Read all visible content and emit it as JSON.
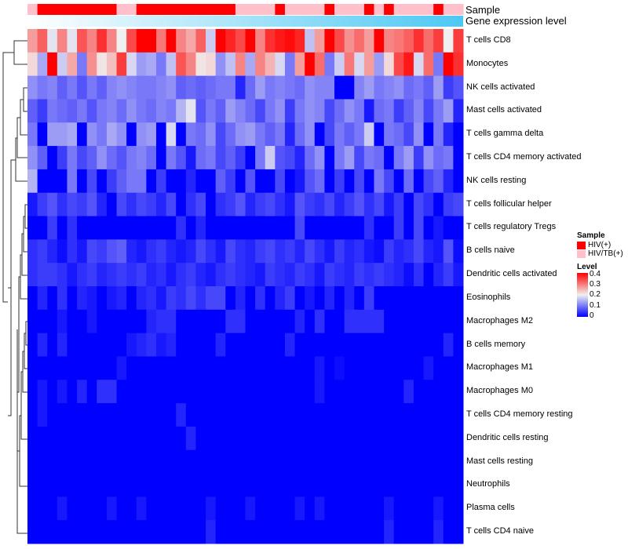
{
  "chart_data": {
    "type": "heatmap",
    "annotation_labels": [
      "Sample",
      "Gene expression level"
    ],
    "sample_legend": {
      "title": "Sample",
      "entries": [
        {
          "label": "HIV(+)",
          "color": "#FF0000"
        },
        {
          "label": "HIV/TB(+)",
          "color": "#FFC0CB"
        }
      ]
    },
    "level_legend": {
      "title": "Level",
      "ticks": [
        "0.4",
        "0.3",
        "0.2",
        "0.1",
        "0"
      ],
      "range": [
        0,
        0.4
      ],
      "colors": [
        "#0000FF",
        "#F0F0F0",
        "#FF0000"
      ]
    },
    "gene_expression_colors": [
      "#FFFFFF",
      "#4CC8F4"
    ],
    "samples": [
      "HIV/TB(+)",
      "HIV(+)",
      "HIV(+)",
      "HIV(+)",
      "HIV(+)",
      "HIV(+)",
      "HIV(+)",
      "HIV(+)",
      "HIV(+)",
      "HIV/TB(+)",
      "HIV/TB(+)",
      "HIV(+)",
      "HIV(+)",
      "HIV(+)",
      "HIV(+)",
      "HIV(+)",
      "HIV(+)",
      "HIV(+)",
      "HIV(+)",
      "HIV(+)",
      "HIV(+)",
      "HIV/TB(+)",
      "HIV/TB(+)",
      "HIV/TB(+)",
      "HIV/TB(+)",
      "HIV(+)",
      "HIV/TB(+)",
      "HIV/TB(+)",
      "HIV/TB(+)",
      "HIV/TB(+)",
      "HIV(+)",
      "HIV/TB(+)",
      "HIV/TB(+)",
      "HIV/TB(+)",
      "HIV(+)",
      "HIV/TB(+)",
      "HIV(+)",
      "HIV/TB(+)",
      "HIV/TB(+)",
      "HIV/TB(+)",
      "HIV/TB(+)",
      "HIV(+)",
      "HIV/TB(+)",
      "HIV/TB(+)"
    ],
    "rows": [
      "T cells CD8",
      "Monocytes",
      "NK cells activated",
      "Mast cells activated",
      "T cells gamma delta",
      "T cells CD4 memory activated",
      "NK cells resting",
      "T cells follicular helper",
      "T cells regulatory  Tregs",
      "B cells naive",
      "Dendritic cells activated",
      "Eosinophils",
      "Macrophages M2",
      "B cells memory",
      "Macrophages M1",
      "Macrophages M0",
      "T cells CD4 memory resting",
      "Dendritic cells resting",
      "Mast cells resting",
      "Neutrophils",
      "Plasma cells",
      "T cells CD4 naive"
    ],
    "values": [
      [
        0.27,
        0.32,
        0.19,
        0.29,
        0.19,
        0.33,
        0.29,
        0.36,
        0.29,
        0.2,
        0.34,
        0.4,
        0.4,
        0.3,
        0.4,
        0.29,
        0.26,
        0.32,
        0.17,
        0.4,
        0.37,
        0.34,
        0.4,
        0.29,
        0.36,
        0.38,
        0.39,
        0.37,
        0.16,
        0.27,
        0.4,
        0.34,
        0.28,
        0.31,
        0.27,
        0.4,
        0.29,
        0.3,
        0.32,
        0.36,
        0.31,
        0.35,
        0.2,
        0.35
      ],
      [
        0.22,
        0.14,
        0.4,
        0.17,
        0.26,
        0.1,
        0.28,
        0.21,
        0.24,
        0.35,
        0.18,
        0.13,
        0.14,
        0.1,
        0.16,
        0.33,
        0.29,
        0.21,
        0.22,
        0.12,
        0.16,
        0.29,
        0.14,
        0.29,
        0.25,
        0.18,
        0.1,
        0.27,
        0.4,
        0.31,
        0.1,
        0.17,
        0.3,
        0.18,
        0.27,
        0.13,
        0.22,
        0.34,
        0.38,
        0.18,
        0.31,
        0.1,
        0.4,
        0.36
      ],
      [
        0.12,
        0.1,
        0.11,
        0.08,
        0.1,
        0.07,
        0.1,
        0.08,
        0.11,
        0.12,
        0.11,
        0.1,
        0.1,
        0.11,
        0.12,
        0.08,
        0.09,
        0.08,
        0.09,
        0.1,
        0.1,
        0.03,
        0.09,
        0.13,
        0.1,
        0.11,
        0.1,
        0.09,
        0.12,
        0.11,
        0.11,
        0.0,
        0.0,
        0.11,
        0.13,
        0.1,
        0.11,
        0.12,
        0.09,
        0.1,
        0.08,
        0.13,
        0.05,
        0.07
      ],
      [
        0.08,
        0.05,
        0.1,
        0.09,
        0.08,
        0.1,
        0.07,
        0.1,
        0.11,
        0.09,
        0.12,
        0.1,
        0.09,
        0.11,
        0.1,
        0.15,
        0.19,
        0.07,
        0.1,
        0.08,
        0.13,
        0.11,
        0.09,
        0.06,
        0.1,
        0.12,
        0.05,
        0.1,
        0.12,
        0.11,
        0.06,
        0.09,
        0.12,
        0.1,
        0.02,
        0.09,
        0.1,
        0.05,
        0.08,
        0.11,
        0.06,
        0.1,
        0.13,
        0.03
      ],
      [
        0.1,
        0.0,
        0.13,
        0.13,
        0.14,
        0.0,
        0.12,
        0.1,
        0.14,
        0.12,
        0.0,
        0.12,
        0.13,
        0.0,
        0.18,
        0.0,
        0.1,
        0.09,
        0.12,
        0.06,
        0.09,
        0.12,
        0.13,
        0.1,
        0.08,
        0.1,
        0.03,
        0.09,
        0.12,
        0.0,
        0.06,
        0.1,
        0.08,
        0.1,
        0.17,
        0.0,
        0.1,
        0.09,
        0.06,
        0.12,
        0.0,
        0.1,
        0.03,
        0.0
      ],
      [
        0.12,
        0.08,
        0.0,
        0.05,
        0.1,
        0.06,
        0.08,
        0.12,
        0.09,
        0.07,
        0.1,
        0.11,
        0.09,
        0.0,
        0.1,
        0.07,
        0.02,
        0.09,
        0.1,
        0.06,
        0.08,
        0.05,
        0.0,
        0.1,
        0.17,
        0.07,
        0.06,
        0.03,
        0.09,
        0.12,
        0.0,
        0.1,
        0.13,
        0.06,
        0.1,
        0.09,
        0.0,
        0.1,
        0.13,
        0.05,
        0.12,
        0.09,
        0.1,
        0.0
      ],
      [
        0.15,
        0.0,
        0.0,
        0.0,
        0.1,
        0.0,
        0.06,
        0.0,
        0.05,
        0.08,
        0.1,
        0.1,
        0.0,
        0.05,
        0.0,
        0.0,
        0.03,
        0.0,
        0.0,
        0.08,
        0.05,
        0.0,
        0.07,
        0.0,
        0.0,
        0.06,
        0.0,
        0.02,
        0.07,
        0.09,
        0.0,
        0.05,
        0.0,
        0.06,
        0.0,
        0.1,
        0.06,
        0.0,
        0.09,
        0.0,
        0.06,
        0.08,
        0.03,
        0.0
      ],
      [
        0.02,
        0.05,
        0.07,
        0.04,
        0.06,
        0.05,
        0.07,
        0.03,
        0.0,
        0.06,
        0.04,
        0.06,
        0.05,
        0.03,
        0.06,
        0.0,
        0.04,
        0.06,
        0.0,
        0.04,
        0.05,
        0.07,
        0.03,
        0.05,
        0.06,
        0.04,
        0.02,
        0.07,
        0.05,
        0.04,
        0.06,
        0.03,
        0.05,
        0.07,
        0.04,
        0.06,
        0.02,
        0.05,
        0.0,
        0.06,
        0.04,
        0.0,
        0.05,
        0.06
      ],
      [
        0.0,
        0.0,
        0.05,
        0.0,
        0.04,
        0.0,
        0.0,
        0.0,
        0.0,
        0.0,
        0.0,
        0.0,
        0.0,
        0.0,
        0.0,
        0.04,
        0.0,
        0.03,
        0.0,
        0.0,
        0.0,
        0.0,
        0.0,
        0.0,
        0.0,
        0.0,
        0.0,
        0.06,
        0.0,
        0.0,
        0.0,
        0.0,
        0.0,
        0.0,
        0.04,
        0.0,
        0.0,
        0.05,
        0.0,
        0.06,
        0.0,
        0.02,
        0.0,
        0.0
      ],
      [
        0.04,
        0.05,
        0.03,
        0.01,
        0.04,
        0.02,
        0.06,
        0.05,
        0.07,
        0.08,
        0.03,
        0.02,
        0.04,
        0.05,
        0.03,
        0.02,
        0.03,
        0.06,
        0.04,
        0.02,
        0.06,
        0.04,
        0.03,
        0.05,
        0.06,
        0.04,
        0.05,
        0.03,
        0.06,
        0.04,
        0.02,
        0.05,
        0.03,
        0.04,
        0.02,
        0.01,
        0.05,
        0.03,
        0.04,
        0.06,
        0.03,
        0.02,
        0.07,
        0.01
      ],
      [
        0.04,
        0.05,
        0.05,
        0.04,
        0.02,
        0.04,
        0.05,
        0.03,
        0.04,
        0.05,
        0.04,
        0.05,
        0.03,
        0.04,
        0.02,
        0.04,
        0.05,
        0.03,
        0.02,
        0.04,
        0.05,
        0.04,
        0.03,
        0.02,
        0.05,
        0.04,
        0.03,
        0.05,
        0.04,
        0.02,
        0.05,
        0.04,
        0.03,
        0.05,
        0.04,
        0.05,
        0.04,
        0.03,
        0.01,
        0.04,
        0.0,
        0.03,
        0.05,
        0.02
      ],
      [
        0.0,
        0.03,
        0.0,
        0.04,
        0.0,
        0.03,
        0.02,
        0.0,
        0.02,
        0.03,
        0.0,
        0.03,
        0.04,
        0.02,
        0.05,
        0.04,
        0.06,
        0.04,
        0.06,
        0.06,
        0.0,
        0.03,
        0.0,
        0.04,
        0.0,
        0.03,
        0.05,
        0.0,
        0.02,
        0.0,
        0.03,
        0.0,
        0.03,
        0.0,
        0.05,
        0.0,
        0.0,
        0.0,
        0.0,
        0.0,
        0.0,
        0.0,
        0.0,
        0.0
      ],
      [
        0.0,
        0.0,
        0.0,
        0.02,
        0.0,
        0.0,
        0.02,
        0.0,
        0.0,
        0.0,
        0.0,
        0.0,
        0.03,
        0.04,
        0.04,
        0.0,
        0.0,
        0.0,
        0.0,
        0.0,
        0.04,
        0.04,
        0.0,
        0.0,
        0.0,
        0.0,
        0.0,
        0.03,
        0.0,
        0.04,
        0.0,
        0.0,
        0.04,
        0.04,
        0.04,
        0.04,
        0.0,
        0.0,
        0.0,
        0.0,
        0.0,
        0.0,
        0.0,
        0.0
      ],
      [
        0.0,
        0.03,
        0.0,
        0.03,
        0.0,
        0.0,
        0.0,
        0.0,
        0.0,
        0.0,
        0.02,
        0.03,
        0.04,
        0.02,
        0.03,
        0.0,
        0.0,
        0.0,
        0.0,
        0.03,
        0.0,
        0.0,
        0.0,
        0.0,
        0.0,
        0.0,
        0.03,
        0.0,
        0.0,
        0.0,
        0.0,
        0.0,
        0.0,
        0.0,
        0.0,
        0.0,
        0.0,
        0.0,
        0.0,
        0.0,
        0.0,
        0.0,
        0.03,
        0.0
      ],
      [
        0,
        0,
        0,
        0,
        0,
        0,
        0,
        0,
        0,
        0.02,
        0,
        0,
        0,
        0,
        0,
        0,
        0,
        0,
        0,
        0,
        0,
        0,
        0,
        0,
        0,
        0,
        0,
        0,
        0,
        0.02,
        0,
        0.01,
        0,
        0,
        0,
        0,
        0,
        0,
        0,
        0,
        0.02,
        0,
        0,
        0
      ],
      [
        0,
        0.02,
        0,
        0.02,
        0,
        0.03,
        0,
        0.04,
        0.04,
        0,
        0,
        0,
        0,
        0,
        0,
        0,
        0,
        0,
        0,
        0,
        0,
        0,
        0,
        0,
        0,
        0,
        0,
        0,
        0,
        0.02,
        0,
        0,
        0,
        0,
        0,
        0,
        0,
        0,
        0.03,
        0,
        0,
        0,
        0,
        0
      ],
      [
        0,
        0.02,
        0,
        0,
        0,
        0,
        0,
        0,
        0,
        0,
        0,
        0,
        0,
        0,
        0,
        0.03,
        0,
        0,
        0,
        0,
        0,
        0,
        0,
        0,
        0,
        0,
        0,
        0,
        0,
        0,
        0,
        0,
        0,
        0,
        0,
        0,
        0,
        0,
        0,
        0,
        0,
        0,
        0,
        0
      ],
      [
        0,
        0,
        0,
        0,
        0,
        0,
        0,
        0,
        0,
        0,
        0,
        0,
        0,
        0,
        0,
        0,
        0.03,
        0,
        0,
        0,
        0,
        0,
        0,
        0,
        0,
        0,
        0,
        0,
        0,
        0,
        0,
        0,
        0,
        0,
        0,
        0,
        0,
        0,
        0,
        0,
        0,
        0,
        0,
        0
      ],
      [
        0,
        0,
        0,
        0,
        0,
        0,
        0,
        0,
        0,
        0,
        0,
        0,
        0,
        0,
        0,
        0,
        0,
        0,
        0,
        0,
        0,
        0,
        0,
        0,
        0,
        0,
        0,
        0,
        0,
        0,
        0,
        0,
        0,
        0,
        0,
        0,
        0,
        0,
        0,
        0,
        0,
        0,
        0,
        0
      ],
      [
        0,
        0,
        0,
        0,
        0,
        0,
        0,
        0,
        0,
        0,
        0,
        0,
        0,
        0,
        0,
        0,
        0,
        0,
        0,
        0,
        0,
        0,
        0,
        0,
        0,
        0,
        0,
        0,
        0,
        0,
        0,
        0,
        0,
        0,
        0,
        0,
        0,
        0,
        0,
        0,
        0,
        0,
        0,
        0
      ],
      [
        0,
        0,
        0,
        0.02,
        0,
        0,
        0,
        0,
        0.02,
        0,
        0,
        0.02,
        0,
        0,
        0,
        0,
        0,
        0,
        0.02,
        0,
        0,
        0,
        0.02,
        0,
        0,
        0,
        0,
        0.02,
        0,
        0.02,
        0,
        0,
        0,
        0,
        0,
        0,
        0.02,
        0,
        0,
        0,
        0,
        0.02,
        0,
        0
      ],
      [
        0,
        0,
        0,
        0,
        0,
        0,
        0,
        0,
        0,
        0,
        0,
        0,
        0,
        0,
        0,
        0,
        0,
        0,
        0.03,
        0,
        0,
        0,
        0,
        0,
        0,
        0,
        0,
        0,
        0,
        0,
        0,
        0,
        0,
        0,
        0,
        0,
        0.03,
        0,
        0,
        0,
        0,
        0.03,
        0,
        0
      ]
    ]
  }
}
